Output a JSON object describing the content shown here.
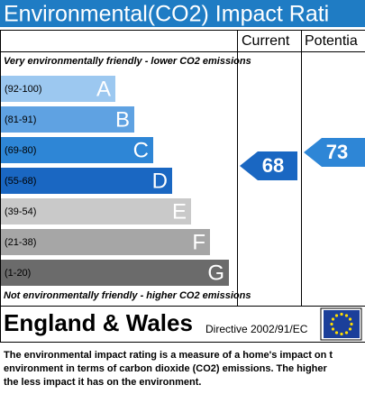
{
  "title": "Environmental(CO2) Impact Rati",
  "columns": [
    "Current",
    "Potentia"
  ],
  "top_note": "Very environmentally friendly - lower CO2 emissions",
  "bottom_note": "Not environmentally friendly - higher CO2 emissions",
  "bands": [
    {
      "range": "(92-100)",
      "letter": "A"
    },
    {
      "range": "(81-91)",
      "letter": "B"
    },
    {
      "range": "(69-80)",
      "letter": "C"
    },
    {
      "range": "(55-68)",
      "letter": "D"
    },
    {
      "range": "(39-54)",
      "letter": "E"
    },
    {
      "range": "(21-38)",
      "letter": "F"
    },
    {
      "range": "(1-20)",
      "letter": "G"
    }
  ],
  "current": "68",
  "potential": "73",
  "footer": {
    "region": "England & Wales",
    "directive": "Directive 2002/91/EC"
  },
  "description": [
    "The environmental impact rating is a measure of a home's impact on t",
    "environment in terms of carbon dioxide (CO2) emissions. The higher",
    "the less impact it has on the environment."
  ]
}
